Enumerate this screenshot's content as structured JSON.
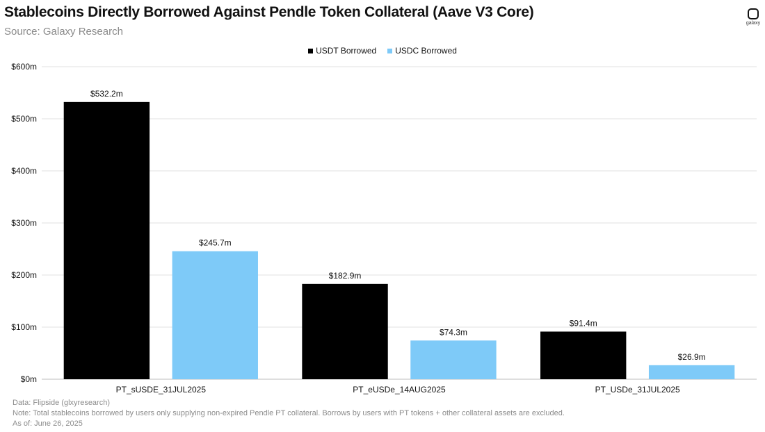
{
  "header": {
    "title": "Stablecoins Directly Borrowed Against Pendle Token Collateral (Aave V3 Core)",
    "subtitle": "Source: Galaxy Research",
    "logo_text": "galaxy"
  },
  "colors": {
    "usdt": "#000000",
    "usdc": "#7ecaf8",
    "grid": "#e2e2e2",
    "axis": "#bdbdbd"
  },
  "chart_data": {
    "type": "bar",
    "title": "Stablecoins Directly Borrowed Against Pendle Token Collateral (Aave V3 Core)",
    "categories": [
      "PT_sUSDE_31JUL2025",
      "PT_eUSDe_14AUG2025",
      "PT_USDe_31JUL2025"
    ],
    "series": [
      {
        "name": "USDT Borrowed",
        "values": [
          532.2,
          182.9,
          91.4
        ],
        "labels": [
          "$532.2m",
          "$182.9m",
          "$91.4m"
        ],
        "color": "#000000"
      },
      {
        "name": "USDC Borrowed",
        "values": [
          245.7,
          74.3,
          26.9
        ],
        "labels": [
          "$245.7m",
          "$74.3m",
          "$26.9m"
        ],
        "color": "#7ecaf8"
      }
    ],
    "ylim": [
      0,
      600
    ],
    "yticks": [
      0,
      100,
      200,
      300,
      400,
      500,
      600
    ],
    "ytick_labels": [
      "$0m",
      "$100m",
      "$200m",
      "$300m",
      "$400m",
      "$500m",
      "$600m"
    ],
    "grid": true,
    "legend_position": "top-center",
    "xlabel": "",
    "ylabel": ""
  },
  "footer": {
    "data_note": "Data: Flipside (glxyresearch)",
    "note": "Note: Total stablecoins borrowed by users only supplying non-expired Pendle PT collateral. Borrows by users with PT tokens + other collateral assets are excluded.",
    "as_of": "As of: June 26, 2025"
  }
}
